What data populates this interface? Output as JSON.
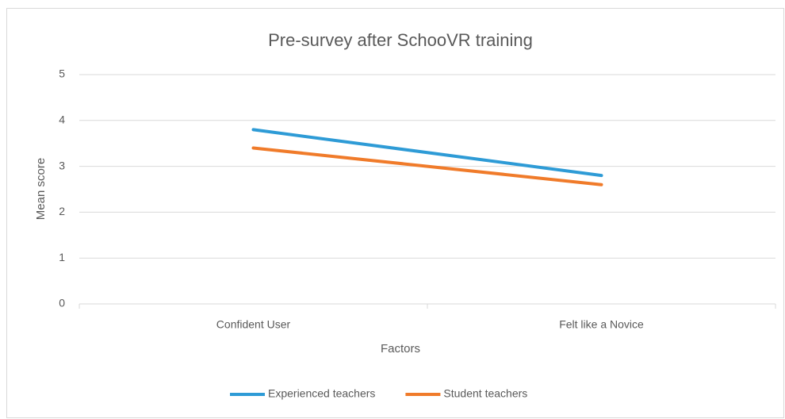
{
  "chart_data": {
    "type": "line",
    "title": "Pre-survey after SchooVR training",
    "x_label": "Factors",
    "y_label": "Mean score",
    "categories": [
      "Confident User",
      "Felt like a Novice"
    ],
    "series": [
      {
        "name": "Experienced teachers",
        "color": "#2e9bd6",
        "values": [
          3.8,
          2.8
        ]
      },
      {
        "name": "Student teachers",
        "color": "#f07b2a",
        "values": [
          3.4,
          2.6
        ]
      }
    ],
    "ylim": [
      0,
      5
    ],
    "yticks": [
      0,
      1,
      2,
      3,
      4,
      5
    ],
    "grid": true,
    "legend": "bottom"
  }
}
